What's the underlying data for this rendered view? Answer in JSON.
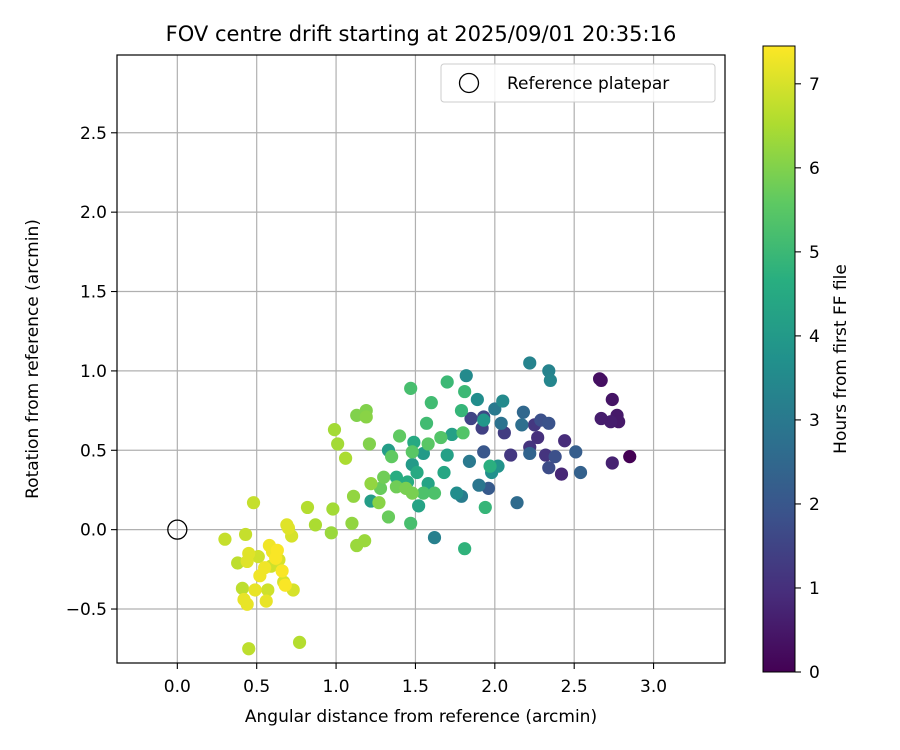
{
  "chart_data": {
    "type": "scatter",
    "title": "FOV centre drift starting at 2025/09/01 20:35:16",
    "xlabel": "Angular distance from reference (arcmin)",
    "ylabel": "Rotation from reference (arcmin)",
    "xlim": [
      -0.38,
      3.45
    ],
    "ylim": [
      -0.84,
      2.99
    ],
    "xticks": [
      "0.0",
      "0.5",
      "1.0",
      "1.5",
      "2.0",
      "2.5",
      "3.0"
    ],
    "yticks": [
      "−0.5",
      "0.0",
      "0.5",
      "1.0",
      "1.5",
      "2.0",
      "2.5"
    ],
    "grid": true,
    "legend": {
      "position": "top-right",
      "entries": [
        {
          "label": "Reference platepar",
          "marker": "open-circle",
          "x": 0.0,
          "y": 0.0
        }
      ]
    },
    "colorbar": {
      "label": "Hours from first FF file",
      "colormap": "viridis",
      "min": 0,
      "max": 7.45,
      "ticks": [
        "0",
        "1",
        "2",
        "3",
        "4",
        "5",
        "6",
        "7"
      ]
    },
    "points": [
      {
        "x": 2.85,
        "y": 0.46,
        "c": 0.0
      },
      {
        "x": 2.67,
        "y": 0.94,
        "c": 0.3
      },
      {
        "x": 2.66,
        "y": 0.95,
        "c": 0.3
      },
      {
        "x": 2.74,
        "y": 0.82,
        "c": 0.4
      },
      {
        "x": 2.77,
        "y": 0.72,
        "c": 0.5
      },
      {
        "x": 2.78,
        "y": 0.68,
        "c": 0.5
      },
      {
        "x": 2.73,
        "y": 0.68,
        "c": 0.6
      },
      {
        "x": 2.67,
        "y": 0.7,
        "c": 0.6
      },
      {
        "x": 2.74,
        "y": 0.42,
        "c": 0.7
      },
      {
        "x": 2.42,
        "y": 0.35,
        "c": 0.8
      },
      {
        "x": 2.44,
        "y": 0.56,
        "c": 0.9
      },
      {
        "x": 2.27,
        "y": 0.58,
        "c": 1.0
      },
      {
        "x": 2.32,
        "y": 0.47,
        "c": 1.1
      },
      {
        "x": 2.22,
        "y": 0.52,
        "c": 1.1
      },
      {
        "x": 2.25,
        "y": 0.66,
        "c": 1.2
      },
      {
        "x": 2.1,
        "y": 0.47,
        "c": 1.2
      },
      {
        "x": 2.06,
        "y": 0.61,
        "c": 1.3
      },
      {
        "x": 1.92,
        "y": 0.64,
        "c": 1.4
      },
      {
        "x": 1.85,
        "y": 0.7,
        "c": 1.5
      },
      {
        "x": 1.93,
        "y": 0.71,
        "c": 1.6
      },
      {
        "x": 2.34,
        "y": 0.39,
        "c": 1.7
      },
      {
        "x": 2.38,
        "y": 0.46,
        "c": 1.8
      },
      {
        "x": 2.29,
        "y": 0.69,
        "c": 1.8
      },
      {
        "x": 2.34,
        "y": 0.67,
        "c": 1.9
      },
      {
        "x": 1.93,
        "y": 0.49,
        "c": 2.0
      },
      {
        "x": 1.96,
        "y": 0.26,
        "c": 2.1
      },
      {
        "x": 2.51,
        "y": 0.49,
        "c": 2.2
      },
      {
        "x": 2.54,
        "y": 0.36,
        "c": 2.3
      },
      {
        "x": 2.22,
        "y": 0.48,
        "c": 2.4
      },
      {
        "x": 2.18,
        "y": 0.74,
        "c": 2.5
      },
      {
        "x": 2.14,
        "y": 0.17,
        "c": 2.6
      },
      {
        "x": 2.17,
        "y": 0.66,
        "c": 2.7
      },
      {
        "x": 2.04,
        "y": 0.67,
        "c": 2.8
      },
      {
        "x": 1.9,
        "y": 0.28,
        "c": 2.9
      },
      {
        "x": 1.84,
        "y": 0.43,
        "c": 3.0
      },
      {
        "x": 2.0,
        "y": 0.76,
        "c": 3.0
      },
      {
        "x": 1.79,
        "y": 0.21,
        "c": 3.1
      },
      {
        "x": 1.62,
        "y": -0.05,
        "c": 3.2
      },
      {
        "x": 2.22,
        "y": 1.05,
        "c": 3.3
      },
      {
        "x": 2.34,
        "y": 1.0,
        "c": 3.3
      },
      {
        "x": 2.35,
        "y": 0.94,
        "c": 3.4
      },
      {
        "x": 2.05,
        "y": 0.81,
        "c": 3.5
      },
      {
        "x": 1.82,
        "y": 0.97,
        "c": 3.5
      },
      {
        "x": 1.89,
        "y": 0.82,
        "c": 3.6
      },
      {
        "x": 1.76,
        "y": 0.23,
        "c": 3.6
      },
      {
        "x": 1.98,
        "y": 0.36,
        "c": 3.7
      },
      {
        "x": 2.02,
        "y": 0.4,
        "c": 3.8
      },
      {
        "x": 1.93,
        "y": 0.69,
        "c": 3.9
      },
      {
        "x": 1.55,
        "y": 0.48,
        "c": 4.0
      },
      {
        "x": 1.48,
        "y": 0.41,
        "c": 4.0
      },
      {
        "x": 1.33,
        "y": 0.5,
        "c": 4.1
      },
      {
        "x": 1.22,
        "y": 0.18,
        "c": 4.1
      },
      {
        "x": 1.73,
        "y": 0.6,
        "c": 4.2
      },
      {
        "x": 1.7,
        "y": 0.47,
        "c": 4.2
      },
      {
        "x": 1.58,
        "y": 0.29,
        "c": 4.3
      },
      {
        "x": 1.52,
        "y": 0.15,
        "c": 4.3
      },
      {
        "x": 1.68,
        "y": 0.36,
        "c": 4.4
      },
      {
        "x": 1.49,
        "y": 0.55,
        "c": 4.5
      },
      {
        "x": 1.51,
        "y": 0.36,
        "c": 4.5
      },
      {
        "x": 1.45,
        "y": 0.3,
        "c": 4.6
      },
      {
        "x": 1.38,
        "y": 0.33,
        "c": 4.6
      },
      {
        "x": 1.97,
        "y": 0.4,
        "c": 4.7
      },
      {
        "x": 1.81,
        "y": -0.12,
        "c": 4.8
      },
      {
        "x": 1.94,
        "y": 0.14,
        "c": 4.9
      },
      {
        "x": 1.79,
        "y": 0.75,
        "c": 4.9
      },
      {
        "x": 1.81,
        "y": 0.87,
        "c": 5.0
      },
      {
        "x": 1.7,
        "y": 0.93,
        "c": 5.0
      },
      {
        "x": 1.6,
        "y": 0.8,
        "c": 5.1
      },
      {
        "x": 1.57,
        "y": 0.67,
        "c": 5.1
      },
      {
        "x": 1.47,
        "y": 0.89,
        "c": 5.2
      },
      {
        "x": 1.47,
        "y": 0.04,
        "c": 5.2
      },
      {
        "x": 1.62,
        "y": 0.23,
        "c": 5.3
      },
      {
        "x": 1.55,
        "y": 0.23,
        "c": 5.3
      },
      {
        "x": 1.8,
        "y": 0.61,
        "c": 5.4
      },
      {
        "x": 1.66,
        "y": 0.58,
        "c": 5.4
      },
      {
        "x": 1.58,
        "y": 0.54,
        "c": 5.5
      },
      {
        "x": 1.48,
        "y": 0.49,
        "c": 5.5
      },
      {
        "x": 1.4,
        "y": 0.59,
        "c": 5.6
      },
      {
        "x": 1.35,
        "y": 0.46,
        "c": 5.6
      },
      {
        "x": 1.33,
        "y": 0.08,
        "c": 5.7
      },
      {
        "x": 1.28,
        "y": 0.26,
        "c": 5.7
      },
      {
        "x": 1.3,
        "y": 0.33,
        "c": 5.8
      },
      {
        "x": 1.38,
        "y": 0.27,
        "c": 5.8
      },
      {
        "x": 1.44,
        "y": 0.26,
        "c": 5.9
      },
      {
        "x": 1.48,
        "y": 0.23,
        "c": 5.9
      },
      {
        "x": 1.21,
        "y": 0.54,
        "c": 6.0
      },
      {
        "x": 1.13,
        "y": 0.72,
        "c": 6.0
      },
      {
        "x": 1.19,
        "y": 0.75,
        "c": 6.0
      },
      {
        "x": 1.19,
        "y": 0.71,
        "c": 6.1
      },
      {
        "x": 1.27,
        "y": 0.17,
        "c": 6.1
      },
      {
        "x": 1.22,
        "y": 0.29,
        "c": 6.2
      },
      {
        "x": 1.11,
        "y": 0.21,
        "c": 6.2
      },
      {
        "x": 1.1,
        "y": 0.04,
        "c": 6.2
      },
      {
        "x": 1.13,
        "y": -0.1,
        "c": 6.3
      },
      {
        "x": 1.18,
        "y": -0.07,
        "c": 6.3
      },
      {
        "x": 0.97,
        "y": -0.02,
        "c": 6.3
      },
      {
        "x": 0.98,
        "y": 0.13,
        "c": 6.4
      },
      {
        "x": 0.99,
        "y": 0.63,
        "c": 6.4
      },
      {
        "x": 1.01,
        "y": 0.54,
        "c": 6.4
      },
      {
        "x": 1.06,
        "y": 0.45,
        "c": 6.5
      },
      {
        "x": 0.87,
        "y": 0.03,
        "c": 6.5
      },
      {
        "x": 0.82,
        "y": 0.14,
        "c": 6.6
      },
      {
        "x": 0.77,
        "y": -0.71,
        "c": 6.6
      },
      {
        "x": 0.45,
        "y": -0.75,
        "c": 6.7
      },
      {
        "x": 0.41,
        "y": -0.37,
        "c": 6.7
      },
      {
        "x": 0.38,
        "y": -0.21,
        "c": 6.7
      },
      {
        "x": 0.3,
        "y": -0.06,
        "c": 6.8
      },
      {
        "x": 0.43,
        "y": -0.03,
        "c": 6.8
      },
      {
        "x": 0.48,
        "y": 0.17,
        "c": 6.8
      },
      {
        "x": 0.51,
        "y": -0.17,
        "c": 6.9
      },
      {
        "x": 0.57,
        "y": -0.38,
        "c": 6.9
      },
      {
        "x": 0.59,
        "y": -0.23,
        "c": 6.9
      },
      {
        "x": 0.64,
        "y": -0.19,
        "c": 7.0
      },
      {
        "x": 0.67,
        "y": -0.33,
        "c": 7.0
      },
      {
        "x": 0.73,
        "y": -0.38,
        "c": 7.0
      },
      {
        "x": 0.72,
        "y": -0.04,
        "c": 7.0
      },
      {
        "x": 0.69,
        "y": 0.03,
        "c": 7.1
      },
      {
        "x": 0.7,
        "y": 0.01,
        "c": 7.1
      },
      {
        "x": 0.45,
        "y": -0.15,
        "c": 7.1
      },
      {
        "x": 0.44,
        "y": -0.2,
        "c": 7.1
      },
      {
        "x": 0.49,
        "y": -0.38,
        "c": 7.2
      },
      {
        "x": 0.56,
        "y": -0.45,
        "c": 7.2
      },
      {
        "x": 0.44,
        "y": -0.47,
        "c": 7.2
      },
      {
        "x": 0.42,
        "y": -0.44,
        "c": 7.2
      },
      {
        "x": 0.52,
        "y": -0.29,
        "c": 7.3
      },
      {
        "x": 0.55,
        "y": -0.24,
        "c": 7.3
      },
      {
        "x": 0.6,
        "y": -0.14,
        "c": 7.3
      },
      {
        "x": 0.58,
        "y": -0.1,
        "c": 7.3
      },
      {
        "x": 0.63,
        "y": -0.13,
        "c": 7.4
      },
      {
        "x": 0.66,
        "y": -0.26,
        "c": 7.4
      },
      {
        "x": 0.68,
        "y": -0.35,
        "c": 7.4
      },
      {
        "x": 0.62,
        "y": -0.18,
        "c": 7.4
      }
    ]
  }
}
